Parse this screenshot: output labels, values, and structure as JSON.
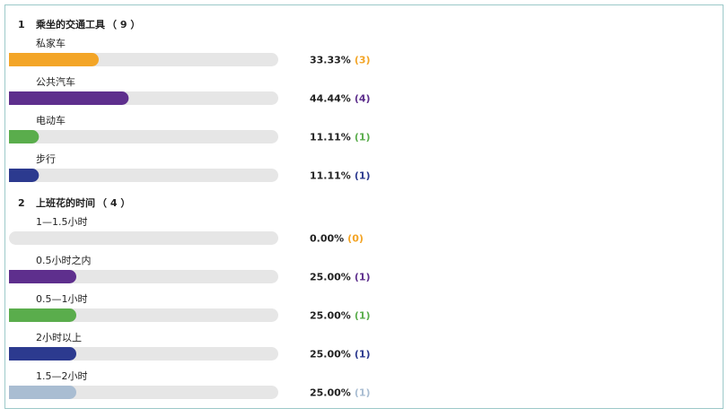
{
  "questions": [
    {
      "number": "1",
      "title": "乘坐的交通工具",
      "total": "（ 9 ）",
      "options": [
        {
          "label": "私家车",
          "value": 33.33,
          "value_label": "33.33%",
          "count": "(3)",
          "color": "#f3a527"
        },
        {
          "label": "公共汽车",
          "value": 44.44,
          "value_label": "44.44%",
          "count": "(4)",
          "color": "#5e2f8d"
        },
        {
          "label": "电动车",
          "value": 11.11,
          "value_label": "11.11%",
          "count": "(1)",
          "color": "#5aad4c"
        },
        {
          "label": "步行",
          "value": 11.11,
          "value_label": "11.11%",
          "count": "(1)",
          "color": "#2c3a8f"
        }
      ]
    },
    {
      "number": "2",
      "title": "上班花的时间",
      "total": "（ 4 ）",
      "options": [
        {
          "label": "1—1.5小时",
          "value": 0,
          "value_label": "0.00%",
          "count": "(0)",
          "color": "#f3a527"
        },
        {
          "label": "0.5小时之内",
          "value": 25,
          "value_label": "25.00%",
          "count": "(1)",
          "color": "#5e2f8d"
        },
        {
          "label": "0.5—1小时",
          "value": 25,
          "value_label": "25.00%",
          "count": "(1)",
          "color": "#5aad4c"
        },
        {
          "label": "2小时以上",
          "value": 25,
          "value_label": "25.00%",
          "count": "(1)",
          "color": "#2c3a8f"
        },
        {
          "label": "1.5—2小时",
          "value": 25,
          "value_label": "25.00%",
          "count": "(1)",
          "color": "#a9bdd2"
        }
      ]
    }
  ]
}
